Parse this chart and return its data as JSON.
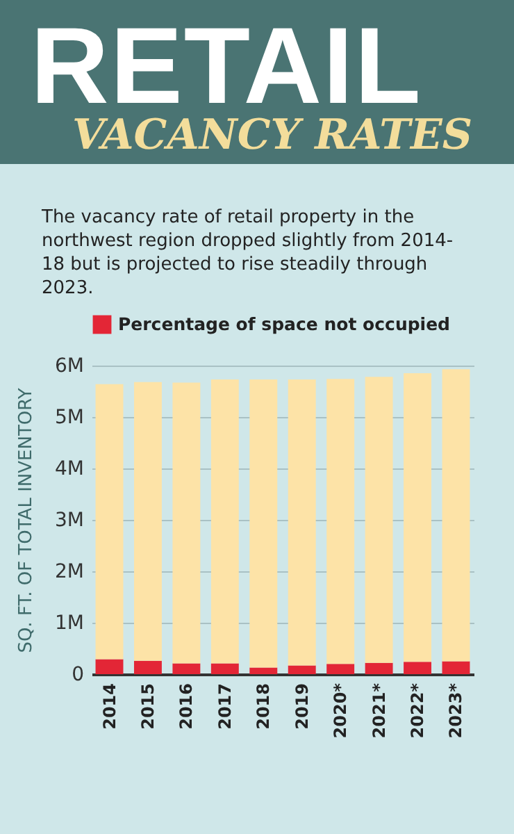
{
  "chart_data": {
    "type": "bar",
    "title": "RETAIL",
    "subtitle": "VACANCY RATES",
    "annotations": [
      "The vacancy rate of retail property in the northwest region dropped slightly from 2014-18 but is projected to rise steadily through 2023."
    ],
    "ylabel": "SQ. FT. OF TOTAL INVENTORY",
    "categories": [
      "2014",
      "2015",
      "2016",
      "2017",
      "2018",
      "2019",
      "2020*",
      "2021*",
      "2022*",
      "2023*"
    ],
    "stacked": true,
    "series": [
      {
        "name": "Percentage of space not occupied",
        "color": "#e32636",
        "values": [
          290000,
          260000,
          210000,
          210000,
          130000,
          170000,
          200000,
          220000,
          240000,
          250000
        ]
      },
      {
        "color": "#fde3a7",
        "values": [
          5350000,
          5420000,
          5460000,
          5520000,
          5600000,
          5560000,
          5540000,
          5560000,
          5610000,
          5680000
        ]
      }
    ],
    "ylim": [
      0,
      6000000
    ],
    "yticks": [
      0,
      {
        "value": 1000000,
        "label": "1M"
      },
      {
        "value": 2000000,
        "label": "2M"
      },
      {
        "value": 3000000,
        "label": "3M"
      },
      {
        "value": 4000000,
        "label": "4M"
      },
      {
        "value": 5000000,
        "label": "5M"
      },
      {
        "value": 6000000,
        "label": "6M"
      }
    ],
    "grid": "y",
    "legend": "top"
  }
}
